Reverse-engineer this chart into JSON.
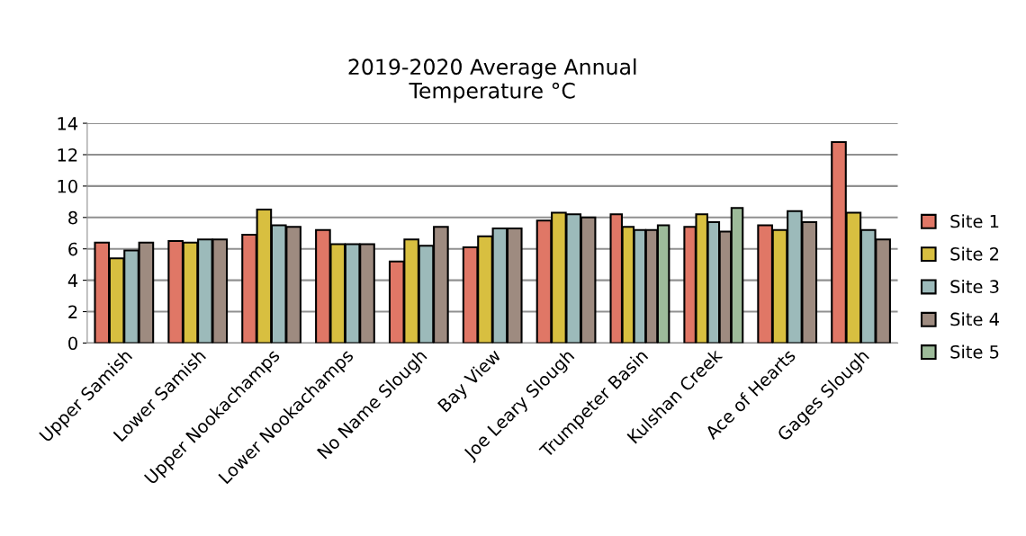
{
  "chart_data": {
    "type": "bar",
    "title": "2019-2020 Average Annual\nTemperature °C",
    "categories": [
      "Upper Samish",
      "Lower Samish",
      "Upper Nookachamps",
      "Lower Nookachamps",
      "No Name Slough",
      "Bay View",
      "Joe Leary Slough",
      "Trumpeter Basin",
      "Kulshan Creek",
      "Ace of Hearts",
      "Gages Slough"
    ],
    "series": [
      {
        "name": "Site 1",
        "color": "#e07766",
        "values": [
          6.4,
          6.5,
          6.9,
          7.2,
          5.2,
          6.1,
          7.8,
          8.2,
          7.4,
          7.5,
          12.8
        ]
      },
      {
        "name": "Site 2",
        "color": "#d8bf40",
        "values": [
          5.4,
          6.4,
          8.5,
          6.3,
          6.6,
          6.8,
          8.3,
          7.4,
          8.2,
          7.2,
          8.3
        ]
      },
      {
        "name": "Site 3",
        "color": "#9cbaba",
        "values": [
          5.9,
          6.6,
          7.5,
          6.3,
          6.2,
          7.3,
          8.2,
          7.2,
          7.7,
          8.4,
          7.2
        ]
      },
      {
        "name": "Site 4",
        "color": "#9e8b80",
        "values": [
          6.4,
          6.6,
          7.4,
          6.3,
          7.4,
          7.3,
          8.0,
          7.2,
          7.1,
          7.7,
          6.6
        ]
      },
      {
        "name": "Site 5",
        "color": "#9dbb9a",
        "values": [
          null,
          null,
          null,
          null,
          null,
          null,
          null,
          7.5,
          8.6,
          null,
          null
        ]
      }
    ],
    "ylim": [
      0,
      14
    ],
    "yticks": [
      0,
      2,
      4,
      6,
      8,
      10,
      12,
      14
    ],
    "grid": "y",
    "legend": "right"
  }
}
